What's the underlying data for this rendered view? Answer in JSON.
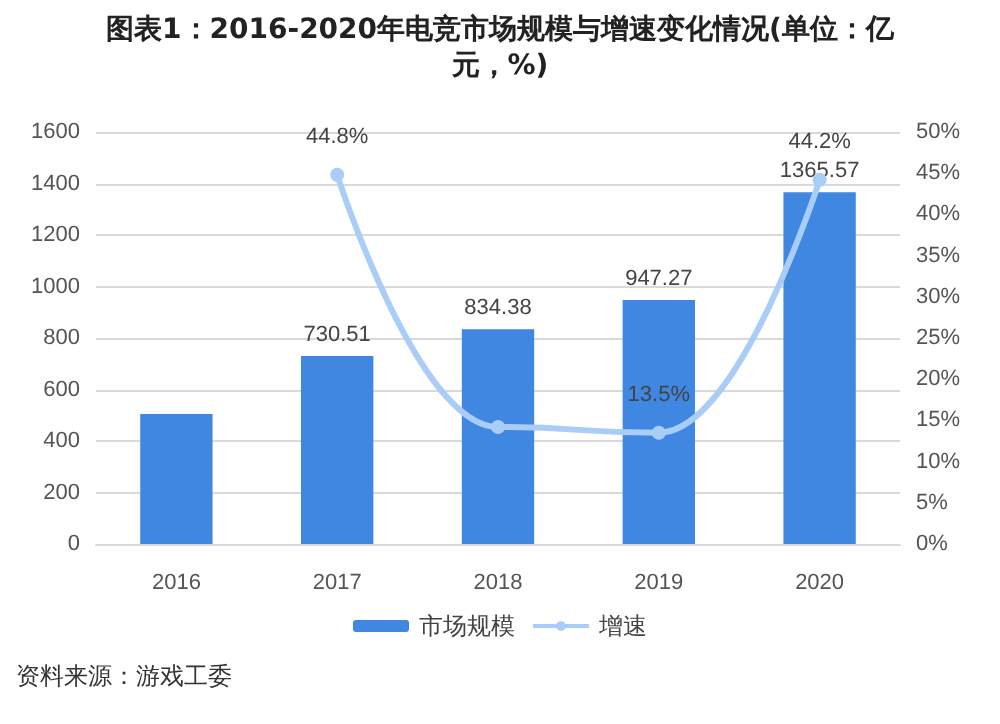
{
  "chart_data": {
    "type": "bar",
    "title": "图表1：2016-2020年电竞市场规模与增速变化情况(单位：亿元，%)",
    "categories": [
      "2016",
      "2017",
      "2018",
      "2019",
      "2020"
    ],
    "series": [
      {
        "name": "市场规模",
        "color": "#3f87e0",
        "values": [
          505,
          730.51,
          834.38,
          947.27,
          1365.57
        ],
        "value_labels": [
          null,
          "730.51",
          "834.38",
          "947.27",
          "1365.57"
        ]
      },
      {
        "name": "增速",
        "type": "line",
        "axis": "y2",
        "color": "#a9cdf7",
        "values": [
          null,
          44.8,
          14.2,
          13.5,
          44.2
        ],
        "value_labels": [
          null,
          "44.8%",
          null,
          "13.5%",
          "44.2%"
        ]
      }
    ],
    "ylim": [
      0,
      1600
    ],
    "yticks": [
      0,
      200,
      400,
      600,
      800,
      1000,
      1200,
      1400,
      1600
    ],
    "y2lim": [
      0,
      50
    ],
    "y2ticks": [
      {
        "value": 0,
        "label": "0%"
      },
      {
        "value": 5,
        "label": "5%"
      },
      {
        "value": 10,
        "label": "10%"
      },
      {
        "value": 15,
        "label": "15%"
      },
      {
        "value": 20,
        "label": "20%"
      },
      {
        "value": 25,
        "label": "25%"
      },
      {
        "value": 30,
        "label": "30%"
      },
      {
        "value": 35,
        "label": "35%"
      },
      {
        "value": 40,
        "label": "40%"
      },
      {
        "value": 45,
        "label": "45%"
      },
      {
        "value": 50,
        "label": "50%"
      }
    ],
    "grid": "y",
    "legend": "bottom",
    "marker": "circle",
    "line_style": "solid",
    "annotations": [
      "资料来源：游戏工委"
    ]
  }
}
